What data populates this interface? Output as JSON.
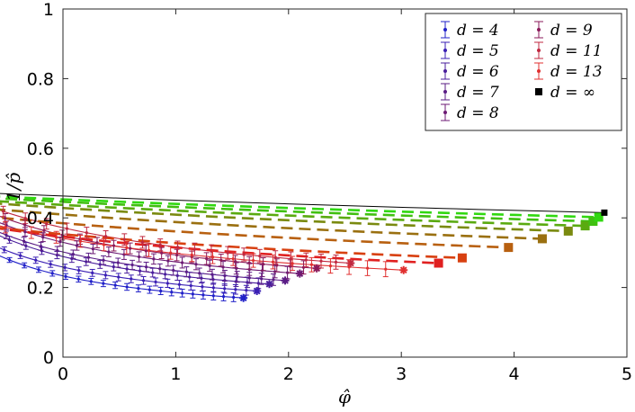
{
  "chart_data": {
    "type": "line",
    "xlabel": "φ̂",
    "ylabel": "1/p̂",
    "xlim": [
      0,
      5
    ],
    "ylim": [
      0,
      1
    ],
    "xticks": [
      "0",
      "1",
      "2",
      "3",
      "4",
      "5"
    ],
    "yticks": [
      "0",
      "0.2",
      "0.4",
      "0.6",
      "0.8",
      "1"
    ],
    "grid": false,
    "legend": {
      "placement": "top-right",
      "entries": [
        {
          "label": "d = 4",
          "color": "#2020c8"
        },
        {
          "label": "d = 5",
          "color": "#3a1fb4"
        },
        {
          "label": "d = 6",
          "color": "#4a1e9c"
        },
        {
          "label": "d = 7",
          "color": "#5a1c86"
        },
        {
          "label": "d = 8",
          "color": "#6c1a74"
        },
        {
          "label": "d = 9",
          "color": "#8a1a5a"
        },
        {
          "label": "d = 11",
          "color": "#c02840"
        },
        {
          "label": "d = 13",
          "color": "#e03030"
        },
        {
          "label": "d = ∞",
          "color": "#000000"
        }
      ]
    },
    "series": [
      {
        "name": "d = 4",
        "kind": "data",
        "color": "#2020c8",
        "end": [
          1.6,
          0.17
        ],
        "C": 0.27
      },
      {
        "name": "d = 5",
        "kind": "data",
        "color": "#3a1fb4",
        "end": [
          1.72,
          0.19
        ],
        "C": 0.33
      },
      {
        "name": "d = 6",
        "kind": "data",
        "color": "#4a1e9c",
        "end": [
          1.83,
          0.21
        ],
        "C": 0.38
      },
      {
        "name": "d = 7",
        "kind": "data",
        "color": "#5a1c86",
        "end": [
          1.97,
          0.22
        ],
        "C": 0.43
      },
      {
        "name": "d = 8",
        "kind": "data",
        "color": "#6c1a74",
        "end": [
          2.1,
          0.24
        ],
        "C": 0.5
      },
      {
        "name": "d = 9",
        "kind": "data",
        "color": "#8a1a5a",
        "end": [
          2.25,
          0.255
        ],
        "C": 0.57
      },
      {
        "name": "d = 11",
        "kind": "data",
        "color": "#c02840",
        "end": [
          2.55,
          0.27
        ],
        "C": 0.68
      },
      {
        "name": "d = 13",
        "kind": "data",
        "color": "#e03030",
        "end": [
          3.02,
          0.25
        ],
        "C": 0.76
      },
      {
        "kind": "dashed",
        "color": "#e02020",
        "end": [
          3.33,
          0.27
        ],
        "C": 1.05
      },
      {
        "kind": "dashed",
        "color": "#d84010",
        "end": [
          3.54,
          0.285
        ],
        "C": 1.31
      },
      {
        "kind": "dashed",
        "color": "#b86010",
        "end": [
          3.95,
          0.315
        ],
        "C": 1.7
      },
      {
        "kind": "dashed",
        "color": "#9a7010",
        "end": [
          4.25,
          0.34
        ],
        "C": 2.08
      },
      {
        "kind": "dashed",
        "color": "#7a8a10",
        "end": [
          4.48,
          0.362
        ],
        "C": 2.52
      },
      {
        "kind": "dashed",
        "color": "#5aaa10",
        "end": [
          4.63,
          0.377
        ],
        "C": 3.0
      },
      {
        "kind": "dashed",
        "color": "#40c010",
        "end": [
          4.7,
          0.39
        ],
        "C": 3.4
      },
      {
        "kind": "dashed",
        "color": "#30d810",
        "end": [
          4.75,
          0.402
        ],
        "C": 3.9
      },
      {
        "name": "d = ∞",
        "kind": "limit",
        "color": "#000000",
        "end": [
          4.8,
          0.415
        ],
        "C": 4.4
      }
    ]
  }
}
